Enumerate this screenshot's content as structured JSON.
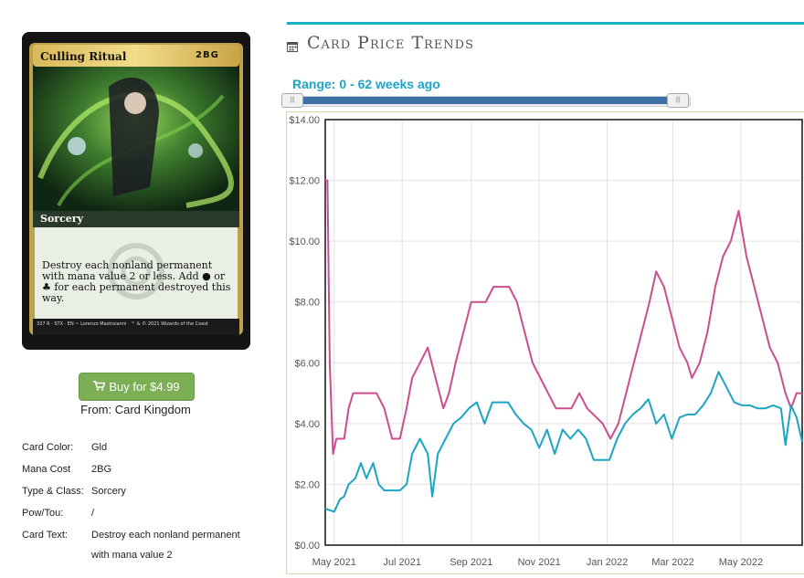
{
  "card": {
    "name": "Culling Ritual",
    "mana_cost": "2BG",
    "type_line": "Sorcery",
    "rules_text": "Destroy each nonland permanent with mana value 2 or less. Add ● or ♣ for each permanent destroyed this way.",
    "footer": "337 R · STX · EN ~ Lorenzo Mastroianni · ™ & © 2021 Wizards of the Coast"
  },
  "buy": {
    "label": "Buy for $4.99",
    "from": "From: Card Kingdom"
  },
  "attributes": [
    {
      "key": "Card Color:",
      "value": "Gld"
    },
    {
      "key": "Mana Cost",
      "value": "2BG"
    },
    {
      "key": "Type & Class:",
      "value": "Sorcery"
    },
    {
      "key": "Pow/Tou:",
      "value": "/"
    },
    {
      "key": "Card Text:",
      "value": "Destroy each nonland permanent with mana value 2"
    }
  ],
  "section": {
    "title": "Card Price Trends",
    "range_label": "Range: 0 - 62 weeks ago"
  },
  "colors": {
    "accent": "#1ab0c4",
    "buy": "#7cae56",
    "series_pink": "#cc4d8f",
    "series_cyan": "#1ca5c2",
    "slider": "#3e6fa7"
  },
  "chart_data": {
    "type": "line",
    "ylim": [
      0,
      14
    ],
    "yticks": [
      "$0.00",
      "$2.00",
      "$4.00",
      "$6.00",
      "$8.00",
      "$10.00",
      "$12.00",
      "$14.00"
    ],
    "xticks": [
      "May 2021",
      "Jul 2021",
      "Sep 2021",
      "Nov 2021",
      "Jan 2022",
      "Mar 2022",
      "May 2022"
    ],
    "grid": true,
    "series": [
      {
        "color": "#cc4d8f",
        "points": [
          [
            "2021-04-23",
            12.0
          ],
          [
            "2021-04-25",
            12.0
          ],
          [
            "2021-04-27",
            6.0
          ],
          [
            "2021-04-30",
            3.0
          ],
          [
            "2021-05-03",
            3.5
          ],
          [
            "2021-05-10",
            3.5
          ],
          [
            "2021-05-14",
            4.5
          ],
          [
            "2021-05-18",
            5.0
          ],
          [
            "2021-06-08",
            5.0
          ],
          [
            "2021-06-15",
            4.5
          ],
          [
            "2021-06-22",
            3.5
          ],
          [
            "2021-06-29",
            3.5
          ],
          [
            "2021-07-05",
            4.5
          ],
          [
            "2021-07-10",
            5.5
          ],
          [
            "2021-07-17",
            6.0
          ],
          [
            "2021-07-24",
            6.5
          ],
          [
            "2021-07-31",
            5.5
          ],
          [
            "2021-08-07",
            4.5
          ],
          [
            "2021-08-12",
            5.0
          ],
          [
            "2021-08-18",
            6.0
          ],
          [
            "2021-08-25",
            7.0
          ],
          [
            "2021-09-01",
            8.0
          ],
          [
            "2021-09-14",
            8.0
          ],
          [
            "2021-09-21",
            8.5
          ],
          [
            "2021-10-05",
            8.5
          ],
          [
            "2021-10-12",
            8.0
          ],
          [
            "2021-10-19",
            7.0
          ],
          [
            "2021-10-26",
            6.0
          ],
          [
            "2021-11-02",
            5.5
          ],
          [
            "2021-11-09",
            5.0
          ],
          [
            "2021-11-16",
            4.5
          ],
          [
            "2021-11-30",
            4.5
          ],
          [
            "2021-12-07",
            5.0
          ],
          [
            "2021-12-14",
            4.5
          ],
          [
            "2021-12-28",
            4.0
          ],
          [
            "2022-01-04",
            3.5
          ],
          [
            "2022-01-11",
            4.0
          ],
          [
            "2022-01-18",
            5.0
          ],
          [
            "2022-01-25",
            6.0
          ],
          [
            "2022-02-01",
            7.0
          ],
          [
            "2022-02-08",
            8.0
          ],
          [
            "2022-02-14",
            9.0
          ],
          [
            "2022-02-21",
            8.5
          ],
          [
            "2022-02-28",
            7.5
          ],
          [
            "2022-03-07",
            6.5
          ],
          [
            "2022-03-14",
            6.0
          ],
          [
            "2022-03-18",
            5.5
          ],
          [
            "2022-03-25",
            6.0
          ],
          [
            "2022-04-01",
            7.0
          ],
          [
            "2022-04-08",
            8.5
          ],
          [
            "2022-04-15",
            9.5
          ],
          [
            "2022-04-22",
            10.0
          ],
          [
            "2022-04-29",
            11.0
          ],
          [
            "2022-05-06",
            9.5
          ],
          [
            "2022-05-13",
            8.5
          ],
          [
            "2022-05-20",
            7.5
          ],
          [
            "2022-05-27",
            6.5
          ],
          [
            "2022-06-03",
            6.0
          ],
          [
            "2022-06-10",
            5.0
          ],
          [
            "2022-06-15",
            4.5
          ],
          [
            "2022-06-20",
            5.0
          ],
          [
            "2022-06-25",
            5.0
          ]
        ]
      },
      {
        "color": "#1ca5c2",
        "points": [
          [
            "2021-04-23",
            1.2
          ],
          [
            "2021-05-01",
            1.1
          ],
          [
            "2021-05-06",
            1.5
          ],
          [
            "2021-05-10",
            1.6
          ],
          [
            "2021-05-14",
            2.0
          ],
          [
            "2021-05-20",
            2.2
          ],
          [
            "2021-05-25",
            2.7
          ],
          [
            "2021-05-30",
            2.2
          ],
          [
            "2021-06-05",
            2.7
          ],
          [
            "2021-06-10",
            2.0
          ],
          [
            "2021-06-15",
            1.8
          ],
          [
            "2021-06-22",
            1.8
          ],
          [
            "2021-06-29",
            1.8
          ],
          [
            "2021-07-05",
            2.0
          ],
          [
            "2021-07-10",
            3.0
          ],
          [
            "2021-07-17",
            3.5
          ],
          [
            "2021-07-24",
            3.0
          ],
          [
            "2021-07-28",
            1.6
          ],
          [
            "2021-08-02",
            3.0
          ],
          [
            "2021-08-09",
            3.5
          ],
          [
            "2021-08-16",
            4.0
          ],
          [
            "2021-08-23",
            4.2
          ],
          [
            "2021-08-30",
            4.5
          ],
          [
            "2021-09-06",
            4.7
          ],
          [
            "2021-09-13",
            4.0
          ],
          [
            "2021-09-20",
            4.7
          ],
          [
            "2021-10-04",
            4.7
          ],
          [
            "2021-10-11",
            4.3
          ],
          [
            "2021-10-18",
            4.0
          ],
          [
            "2021-10-25",
            3.8
          ],
          [
            "2021-11-01",
            3.2
          ],
          [
            "2021-11-08",
            3.8
          ],
          [
            "2021-11-15",
            3.0
          ],
          [
            "2021-11-22",
            3.8
          ],
          [
            "2021-11-29",
            3.5
          ],
          [
            "2021-12-06",
            3.8
          ],
          [
            "2021-12-13",
            3.5
          ],
          [
            "2021-12-20",
            2.8
          ],
          [
            "2022-01-03",
            2.8
          ],
          [
            "2022-01-10",
            3.5
          ],
          [
            "2022-01-17",
            4.0
          ],
          [
            "2022-01-24",
            4.3
          ],
          [
            "2022-01-31",
            4.5
          ],
          [
            "2022-02-07",
            4.8
          ],
          [
            "2022-02-14",
            4.0
          ],
          [
            "2022-02-21",
            4.3
          ],
          [
            "2022-02-28",
            3.5
          ],
          [
            "2022-03-07",
            4.2
          ],
          [
            "2022-03-14",
            4.3
          ],
          [
            "2022-03-21",
            4.3
          ],
          [
            "2022-03-28",
            4.6
          ],
          [
            "2022-04-04",
            5.0
          ],
          [
            "2022-04-11",
            5.7
          ],
          [
            "2022-04-18",
            5.2
          ],
          [
            "2022-04-25",
            4.7
          ],
          [
            "2022-05-02",
            4.6
          ],
          [
            "2022-05-09",
            4.6
          ],
          [
            "2022-05-16",
            4.5
          ],
          [
            "2022-05-23",
            4.5
          ],
          [
            "2022-05-30",
            4.6
          ],
          [
            "2022-06-06",
            4.5
          ],
          [
            "2022-06-10",
            3.3
          ],
          [
            "2022-06-15",
            4.6
          ],
          [
            "2022-06-20",
            4.2
          ],
          [
            "2022-06-25",
            3.4
          ]
        ]
      }
    ]
  }
}
